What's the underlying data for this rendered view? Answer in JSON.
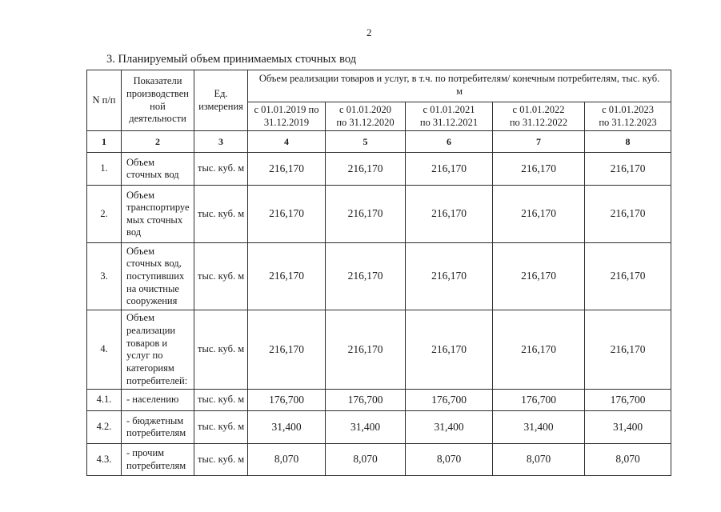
{
  "page": {
    "number": "2",
    "title": "3. Планируемый объем принимаемых сточных вод"
  },
  "table": {
    "header": {
      "col_num": "N п/п",
      "col_indicator": "Показатели\nпроизводствен\nной\nдеятельности",
      "col_unit": "Ед.\nизмерения",
      "volume_group": "Объем реализации товаров и услуг, в т.ч. по потребителям/ конечным потребителям, тыс. куб.\nм",
      "periods": [
        "с 01.01.2019 по\n31.12.2019",
        "с 01.01.2020\nпо 31.12.2020",
        "с 01.01.2021\nпо 31.12.2021",
        "с 01.01.2022\nпо 31.12.2022",
        "с 01.01.2023\nпо 31.12.2023"
      ],
      "column_numbers": [
        "1",
        "2",
        "3",
        "4",
        "5",
        "6",
        "7",
        "8"
      ]
    },
    "rows": [
      {
        "num": "1.",
        "indicator": "Объем\nсточных вод",
        "unit": "тыс. куб. м",
        "values": [
          "216,170",
          "216,170",
          "216,170",
          "216,170",
          "216,170"
        ]
      },
      {
        "num": "2.",
        "indicator": "Объем\nтранспортируе\nмых сточных\nвод",
        "unit": "тыс. куб. м",
        "values": [
          "216,170",
          "216,170",
          "216,170",
          "216,170",
          "216,170"
        ]
      },
      {
        "num": "3.",
        "indicator": "Объем\nсточных вод,\nпоступивших\nна очистные\nсооружения",
        "unit": "тыс. куб. м",
        "values": [
          "216,170",
          "216,170",
          "216,170",
          "216,170",
          "216,170"
        ]
      },
      {
        "num": "4.",
        "indicator": "Объем\nреализации\nтоваров и\nуслуг по\nкатегориям\nпотребителей:",
        "unit": "тыс. куб. м",
        "values": [
          "216,170",
          "216,170",
          "216,170",
          "216,170",
          "216,170"
        ]
      },
      {
        "num": "4.1.",
        "indicator": "- населению",
        "unit": "тыс. куб. м",
        "values": [
          "176,700",
          "176,700",
          "176,700",
          "176,700",
          "176,700"
        ]
      },
      {
        "num": "4.2.",
        "indicator": "- бюджетным\nпотребителям",
        "unit": "тыс. куб. м",
        "values": [
          "31,400",
          "31,400",
          "31,400",
          "31,400",
          "31,400"
        ]
      },
      {
        "num": "4.3.",
        "indicator": "- прочим\nпотребителям",
        "unit": "тыс. куб. м",
        "values": [
          "8,070",
          "8,070",
          "8,070",
          "8,070",
          "8,070"
        ]
      }
    ]
  }
}
